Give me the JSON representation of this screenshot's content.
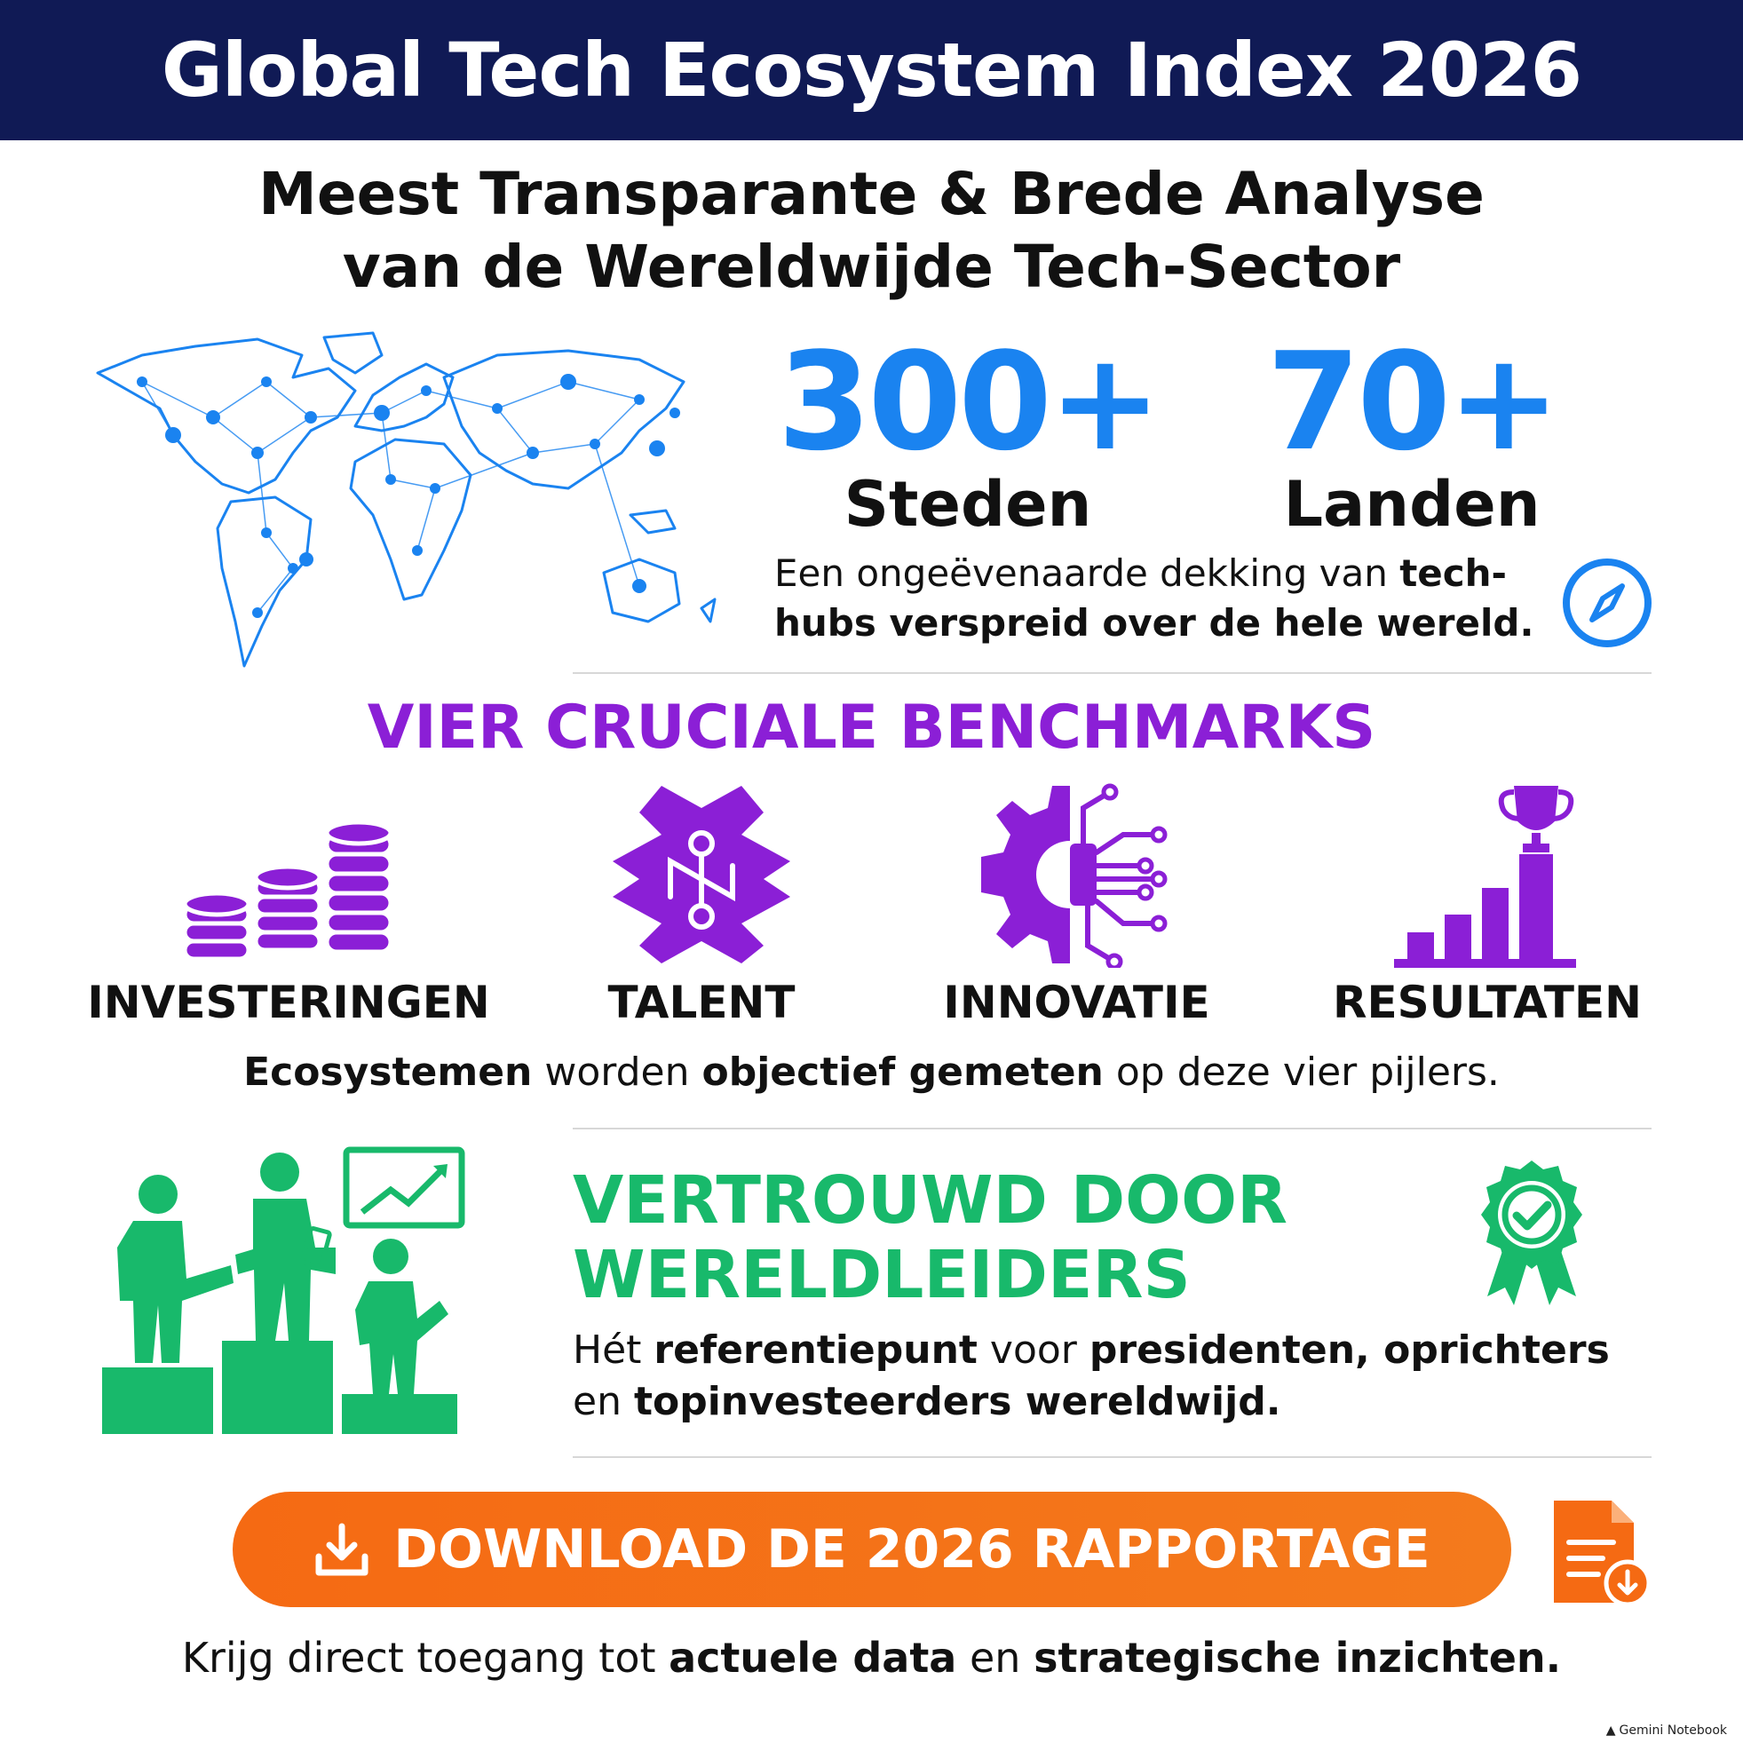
{
  "header": {
    "title": "Global Tech Ecosystem Index 2026"
  },
  "subtitle": {
    "line1": "Meest Transparante & Brede Analyse",
    "line2": "van de Wereldwijde Tech-Sector"
  },
  "stats": [
    {
      "value": "300+",
      "label": "Steden"
    },
    {
      "value": "70+",
      "label": "Landen"
    }
  ],
  "coverage": {
    "line1_normal": "Een ongeëvenaarde dekking van ",
    "line1_bold": "tech-",
    "line2_bold": "hubs verspreid over de hele wereld."
  },
  "benchmarks": {
    "title": "VIER CRUCIALE BENCHMARKS",
    "items": [
      {
        "label": "INVESTERINGEN",
        "icon": "coins-stack-icon"
      },
      {
        "label": "TALENT",
        "icon": "brain-circuit-icon"
      },
      {
        "label": "INNOVATIE",
        "icon": "gear-circuit-icon"
      },
      {
        "label": "RESULTATEN",
        "icon": "trophy-bars-icon"
      }
    ],
    "desc": {
      "b1": "Ecosystemen",
      "t1": " worden ",
      "b2": "objectief gemeten",
      "t2": " op deze vier pijlers."
    }
  },
  "trust": {
    "title_line1": "VERTROUWD DOOR",
    "title_line2": "WERELDLEIDERS",
    "desc": {
      "t1": "Hét ",
      "b1": "referentiepunt",
      "t2": " voor ",
      "b2": "presidenten, oprichters",
      "t3": "en ",
      "b3": "topinvesteerders wereldwijd."
    }
  },
  "cta": {
    "label": "DOWNLOAD DE 2026 RAPPORTAGE"
  },
  "footer": {
    "t1": "Krijg direct toegang tot ",
    "b1": "actuele data",
    "t2": " en ",
    "b2": "strategische inzichten."
  },
  "watermark": "Gemini Notebook",
  "colors": {
    "navy": "#101a55",
    "blue": "#1a83f0",
    "purple": "#8b1fd6",
    "green": "#18b96b",
    "orange": "#f56a13"
  }
}
